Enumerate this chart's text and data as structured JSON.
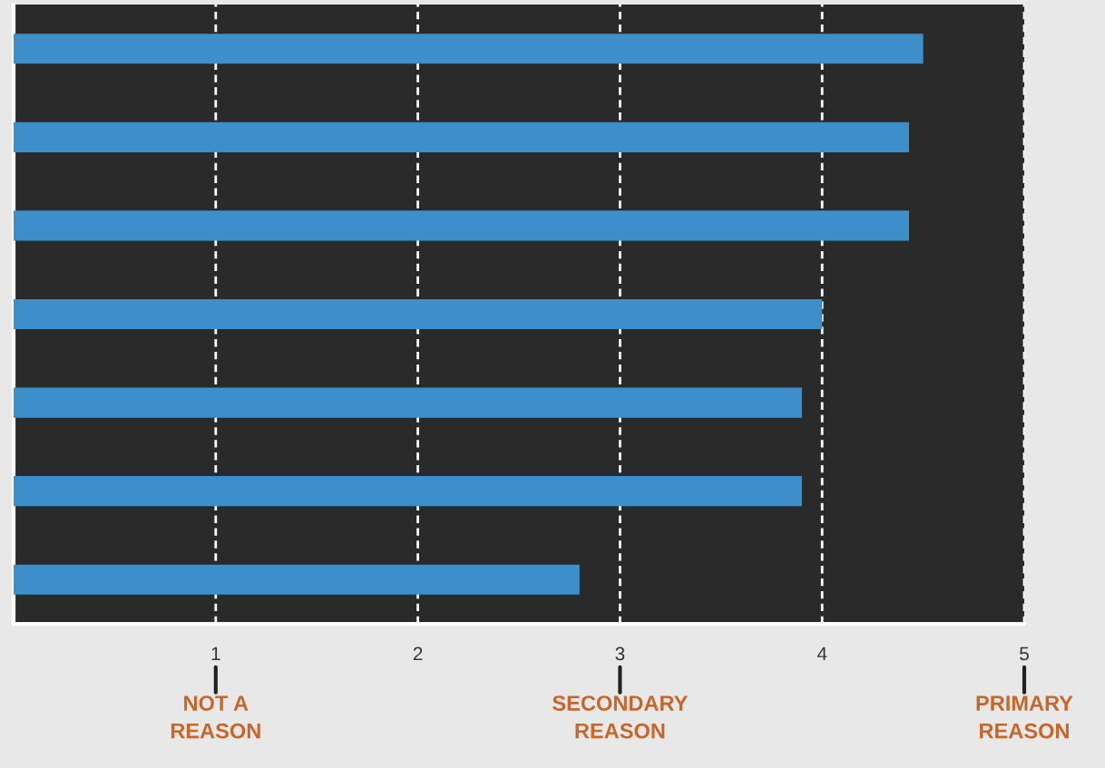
{
  "chart_data": {
    "type": "bar",
    "orientation": "horizontal",
    "categories": [
      null,
      null,
      null,
      null,
      null,
      null,
      null
    ],
    "values": [
      4.5,
      4.43,
      4.43,
      4.0,
      3.9,
      3.9,
      2.8
    ],
    "color": "#3d8fcc",
    "xlim": [
      0,
      5
    ],
    "xticks": [
      1,
      2,
      3,
      4,
      5
    ],
    "annotations": [
      "NOT A\nREASON",
      "SECONDARY\nREASON",
      "PRIMARY\nREASON"
    ],
    "grid": "x",
    "line_style": "dashed",
    "tick_labels": "x"
  }
}
